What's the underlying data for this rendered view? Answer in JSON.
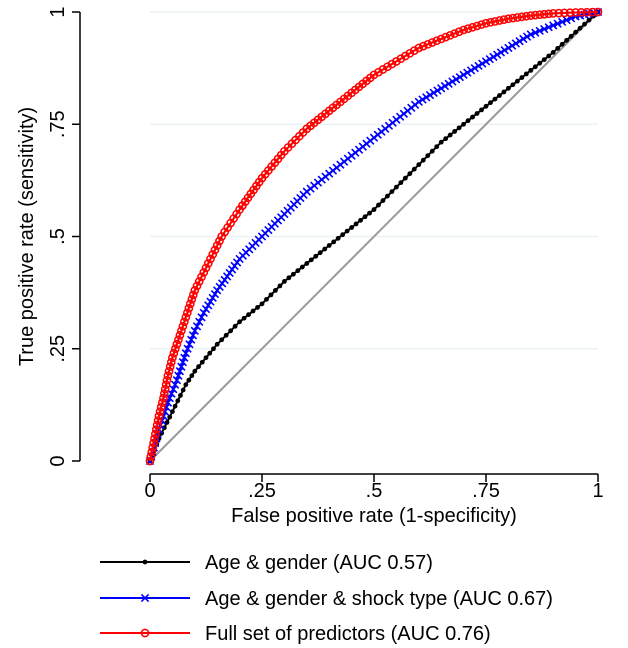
{
  "chart_data": {
    "type": "line",
    "title": "",
    "xlabel": "False positive rate (1-specificity)",
    "ylabel": "True positive rate (sensitivity)",
    "xlim": [
      0,
      1
    ],
    "ylim": [
      0,
      1
    ],
    "x_ticks": [
      0,
      0.25,
      0.5,
      0.75,
      1
    ],
    "x_tick_labels": [
      "0",
      ".25",
      ".5",
      ".75",
      "1"
    ],
    "y_ticks": [
      0,
      0.25,
      0.5,
      0.75,
      1
    ],
    "y_tick_labels": [
      "0",
      ".25",
      ".5",
      ".75",
      "1"
    ],
    "grid": "horizontal",
    "legend_position": "bottom",
    "reference_line": {
      "x": [
        0,
        1
      ],
      "y": [
        0,
        1
      ],
      "color": "#999999"
    },
    "series": [
      {
        "name": "Age & gender (AUC 0.57)",
        "color": "#000000",
        "marker": "dot",
        "x": [
          0,
          0.02,
          0.05,
          0.08,
          0.1,
          0.15,
          0.2,
          0.25,
          0.3,
          0.35,
          0.4,
          0.45,
          0.5,
          0.55,
          0.6,
          0.65,
          0.7,
          0.75,
          0.8,
          0.85,
          0.9,
          0.95,
          1
        ],
        "y": [
          0,
          0.05,
          0.11,
          0.17,
          0.2,
          0.26,
          0.31,
          0.35,
          0.4,
          0.44,
          0.48,
          0.52,
          0.56,
          0.61,
          0.66,
          0.71,
          0.75,
          0.79,
          0.83,
          0.87,
          0.91,
          0.955,
          1
        ]
      },
      {
        "name": "Age & gender & shock type (AUC 0.67)",
        "color": "#0000ff",
        "marker": "x",
        "x": [
          0,
          0.02,
          0.04,
          0.06,
          0.08,
          0.1,
          0.12,
          0.15,
          0.2,
          0.25,
          0.3,
          0.35,
          0.4,
          0.45,
          0.5,
          0.55,
          0.6,
          0.65,
          0.7,
          0.75,
          0.8,
          0.85,
          0.9,
          0.95,
          1
        ],
        "y": [
          0,
          0.07,
          0.13,
          0.18,
          0.24,
          0.29,
          0.33,
          0.38,
          0.45,
          0.5,
          0.55,
          0.6,
          0.64,
          0.68,
          0.72,
          0.76,
          0.8,
          0.83,
          0.86,
          0.89,
          0.92,
          0.95,
          0.97,
          0.99,
          1
        ]
      },
      {
        "name": "Full set of predictors (AUC 0.76)",
        "color": "#ff0000",
        "marker": "circle",
        "x": [
          0,
          0.01,
          0.02,
          0.03,
          0.04,
          0.05,
          0.06,
          0.07,
          0.08,
          0.1,
          0.12,
          0.14,
          0.16,
          0.18,
          0.2,
          0.25,
          0.3,
          0.35,
          0.4,
          0.45,
          0.5,
          0.55,
          0.6,
          0.65,
          0.7,
          0.75,
          0.8,
          0.85,
          0.9,
          0.95,
          1
        ],
        "y": [
          0,
          0.05,
          0.1,
          0.14,
          0.19,
          0.23,
          0.26,
          0.29,
          0.32,
          0.38,
          0.42,
          0.46,
          0.5,
          0.53,
          0.56,
          0.63,
          0.69,
          0.74,
          0.78,
          0.82,
          0.86,
          0.89,
          0.92,
          0.94,
          0.96,
          0.975,
          0.985,
          0.992,
          0.997,
          0.999,
          1
        ]
      }
    ]
  }
}
